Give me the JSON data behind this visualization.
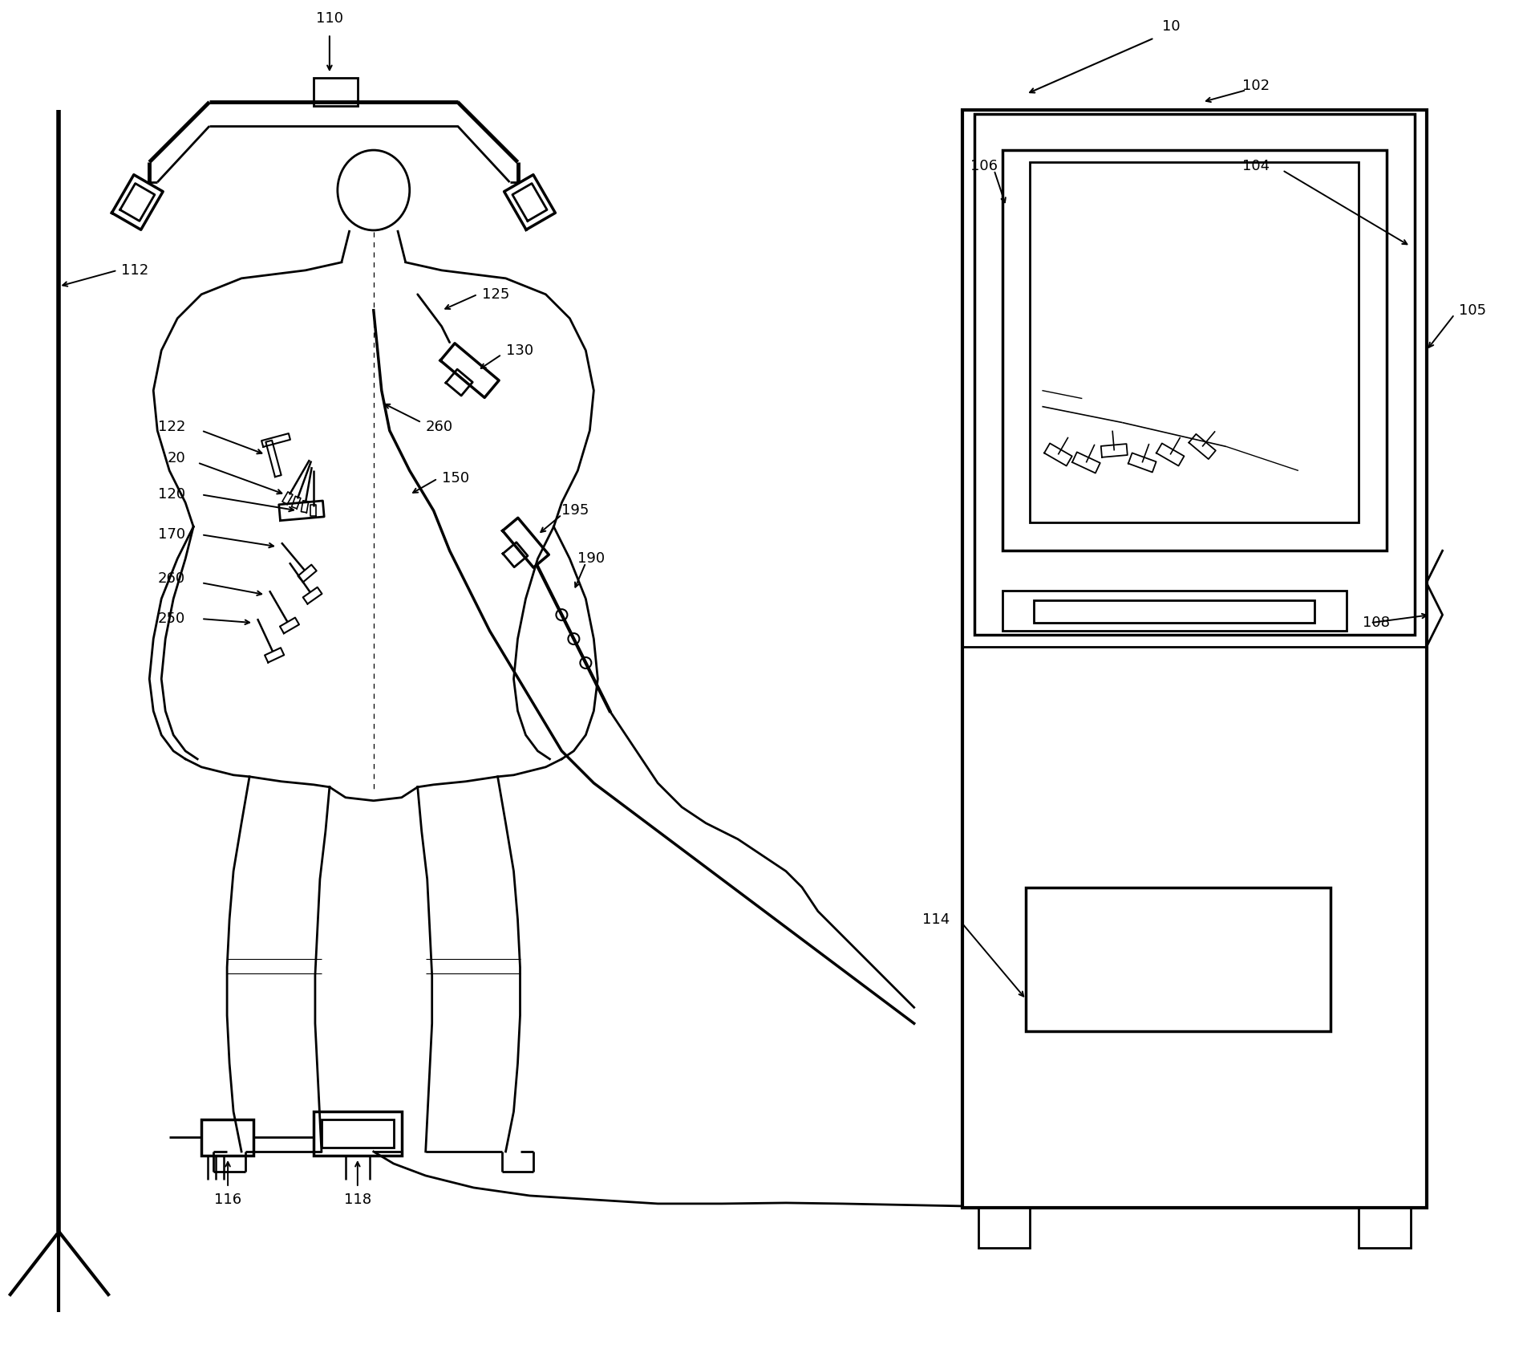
{
  "bg": "#ffffff",
  "lc": "black",
  "lw": 2.0,
  "fs": 13,
  "fw": 19.04,
  "fh": 16.86
}
